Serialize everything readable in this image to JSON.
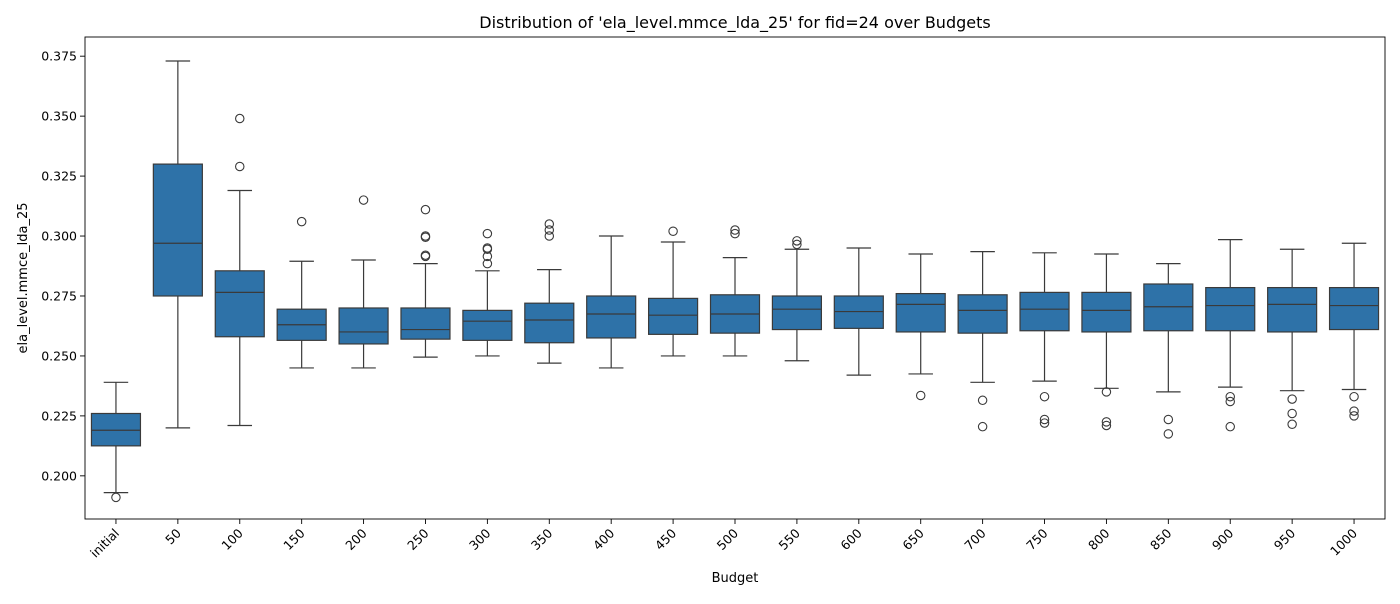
{
  "chart_data": {
    "type": "box",
    "title": "Distribution of 'ela_level.mmce_lda_25' for fid=24 over Budgets",
    "xlabel": "Budget",
    "ylabel": "ela_level.mmce_lda_25",
    "ylim": [
      0.182,
      0.383
    ],
    "yticks": [
      0.2,
      0.225,
      0.25,
      0.275,
      0.3,
      0.325,
      0.35,
      0.375
    ],
    "ytick_labels": [
      "0.200",
      "0.225",
      "0.250",
      "0.275",
      "0.300",
      "0.325",
      "0.350",
      "0.375"
    ],
    "categories": [
      "initial",
      "50",
      "100",
      "150",
      "200",
      "250",
      "300",
      "350",
      "400",
      "450",
      "500",
      "550",
      "600",
      "650",
      "700",
      "750",
      "800",
      "850",
      "900",
      "950",
      "1000"
    ],
    "color": "#2e72a8",
    "grid": false,
    "boxes": [
      {
        "category": "initial",
        "whisker_low": 0.193,
        "q1": 0.2125,
        "median": 0.219,
        "q3": 0.226,
        "whisker_high": 0.239,
        "outliers": [
          0.191
        ]
      },
      {
        "category": "50",
        "whisker_low": 0.22,
        "q1": 0.275,
        "median": 0.297,
        "q3": 0.33,
        "whisker_high": 0.373,
        "outliers": []
      },
      {
        "category": "100",
        "whisker_low": 0.221,
        "q1": 0.258,
        "median": 0.2765,
        "q3": 0.2855,
        "whisker_high": 0.319,
        "outliers": [
          0.329,
          0.349
        ]
      },
      {
        "category": "150",
        "whisker_low": 0.245,
        "q1": 0.2565,
        "median": 0.263,
        "q3": 0.2695,
        "whisker_high": 0.2895,
        "outliers": [
          0.306
        ]
      },
      {
        "category": "200",
        "whisker_low": 0.245,
        "q1": 0.255,
        "median": 0.26,
        "q3": 0.27,
        "whisker_high": 0.29,
        "outliers": [
          0.315
        ]
      },
      {
        "category": "250",
        "whisker_low": 0.2495,
        "q1": 0.257,
        "median": 0.261,
        "q3": 0.27,
        "whisker_high": 0.2885,
        "outliers": [
          0.2915,
          0.292,
          0.2995,
          0.3,
          0.311
        ]
      },
      {
        "category": "300",
        "whisker_low": 0.25,
        "q1": 0.2565,
        "median": 0.2645,
        "q3": 0.269,
        "whisker_high": 0.2855,
        "outliers": [
          0.2885,
          0.2915,
          0.2945,
          0.295,
          0.301
        ]
      },
      {
        "category": "350",
        "whisker_low": 0.247,
        "q1": 0.2555,
        "median": 0.265,
        "q3": 0.272,
        "whisker_high": 0.286,
        "outliers": [
          0.3,
          0.3025,
          0.305
        ]
      },
      {
        "category": "400",
        "whisker_low": 0.245,
        "q1": 0.2575,
        "median": 0.2675,
        "q3": 0.275,
        "whisker_high": 0.3,
        "outliers": []
      },
      {
        "category": "450",
        "whisker_low": 0.25,
        "q1": 0.259,
        "median": 0.267,
        "q3": 0.274,
        "whisker_high": 0.2975,
        "outliers": [
          0.302
        ]
      },
      {
        "category": "500",
        "whisker_low": 0.25,
        "q1": 0.2595,
        "median": 0.2675,
        "q3": 0.2755,
        "whisker_high": 0.291,
        "outliers": [
          0.301,
          0.3025
        ]
      },
      {
        "category": "550",
        "whisker_low": 0.248,
        "q1": 0.261,
        "median": 0.2695,
        "q3": 0.275,
        "whisker_high": 0.2945,
        "outliers": [
          0.2965,
          0.298
        ]
      },
      {
        "category": "600",
        "whisker_low": 0.242,
        "q1": 0.2615,
        "median": 0.2685,
        "q3": 0.275,
        "whisker_high": 0.295,
        "outliers": []
      },
      {
        "category": "650",
        "whisker_low": 0.2425,
        "q1": 0.26,
        "median": 0.2715,
        "q3": 0.276,
        "whisker_high": 0.2925,
        "outliers": [
          0.2335
        ]
      },
      {
        "category": "700",
        "whisker_low": 0.239,
        "q1": 0.2595,
        "median": 0.269,
        "q3": 0.2755,
        "whisker_high": 0.2935,
        "outliers": [
          0.2205,
          0.2315
        ]
      },
      {
        "category": "750",
        "whisker_low": 0.2395,
        "q1": 0.2605,
        "median": 0.2695,
        "q3": 0.2765,
        "whisker_high": 0.293,
        "outliers": [
          0.222,
          0.2235,
          0.233
        ]
      },
      {
        "category": "800",
        "whisker_low": 0.2365,
        "q1": 0.26,
        "median": 0.269,
        "q3": 0.2765,
        "whisker_high": 0.2925,
        "outliers": [
          0.221,
          0.2225,
          0.235
        ]
      },
      {
        "category": "850",
        "whisker_low": 0.235,
        "q1": 0.2605,
        "median": 0.2705,
        "q3": 0.28,
        "whisker_high": 0.2885,
        "outliers": [
          0.2175,
          0.2235
        ]
      },
      {
        "category": "900",
        "whisker_low": 0.237,
        "q1": 0.2605,
        "median": 0.271,
        "q3": 0.2785,
        "whisker_high": 0.2985,
        "outliers": [
          0.2205,
          0.231,
          0.233
        ]
      },
      {
        "category": "950",
        "whisker_low": 0.2355,
        "q1": 0.26,
        "median": 0.2715,
        "q3": 0.2785,
        "whisker_high": 0.2945,
        "outliers": [
          0.2215,
          0.226,
          0.232
        ]
      },
      {
        "category": "1000",
        "whisker_low": 0.236,
        "q1": 0.261,
        "median": 0.271,
        "q3": 0.2785,
        "whisker_high": 0.297,
        "outliers": [
          0.225,
          0.227,
          0.233
        ]
      }
    ]
  }
}
